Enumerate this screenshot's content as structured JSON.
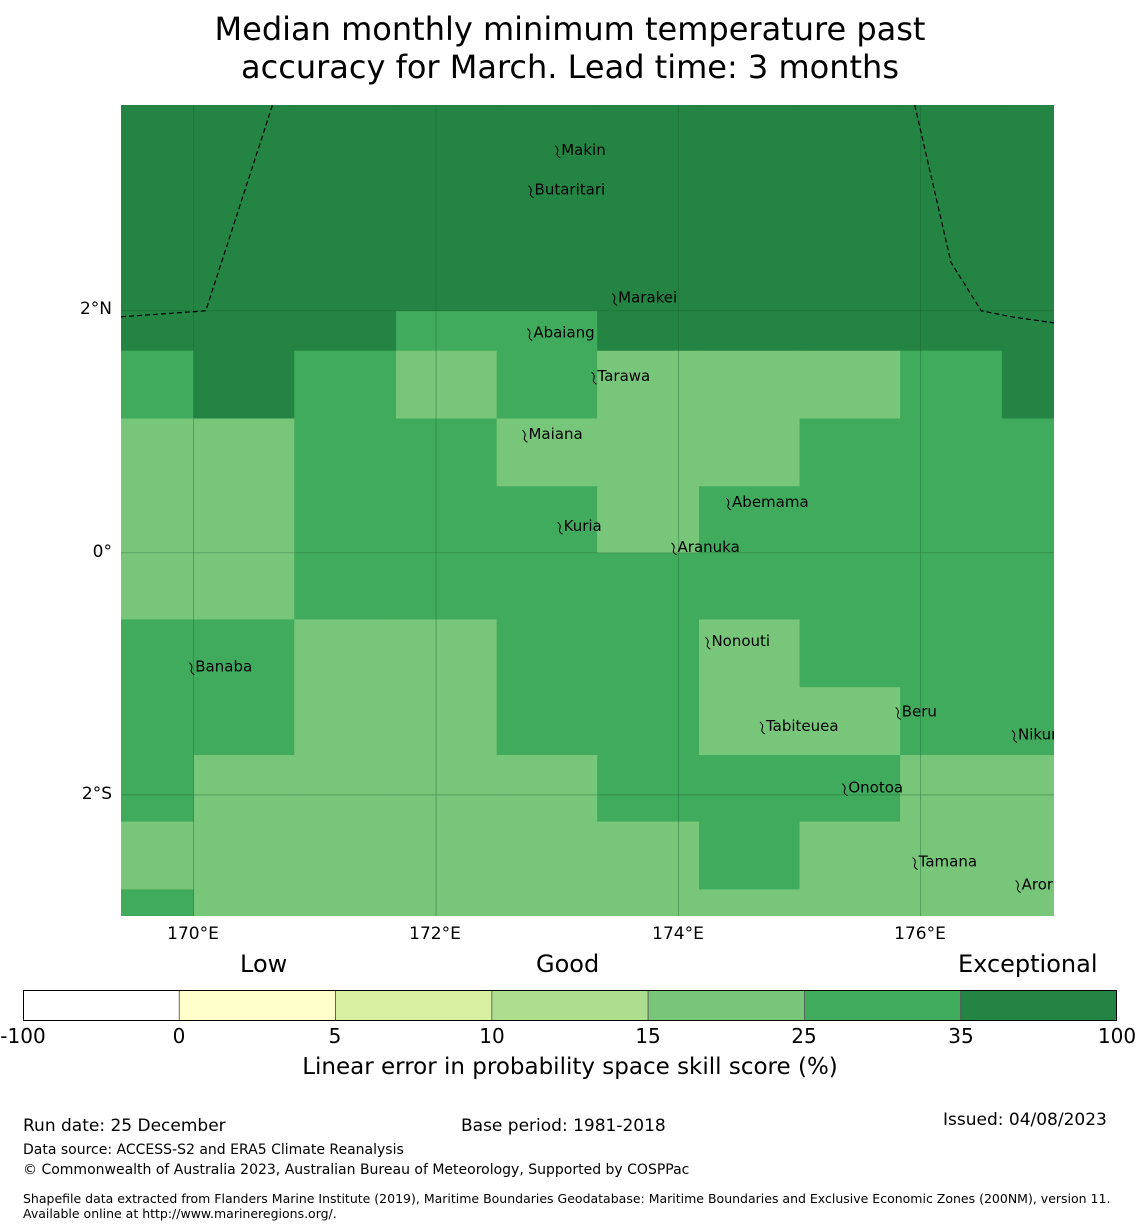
{
  "title_line1": "Median monthly minimum temperature past",
  "title_line2": "accuracy for March. Lead time: 3 months",
  "lat_ticks": [
    {
      "label": "2°N",
      "value": 2
    },
    {
      "label": "0°",
      "value": 0
    },
    {
      "label": "2°S",
      "value": -2
    }
  ],
  "lon_ticks": [
    {
      "label": "170°E",
      "value": 170
    },
    {
      "label": "172°E",
      "value": 172
    },
    {
      "label": "174°E",
      "value": 174
    },
    {
      "label": "176°E",
      "value": 176
    }
  ],
  "extent": {
    "lon_min": 169.4,
    "lon_max": 177.1,
    "lat_min": -3.0,
    "lat_max": 3.7
  },
  "grid": {
    "lon_edges": [
      169.4,
      170.0,
      170.83,
      171.67,
      172.5,
      173.33,
      174.17,
      175.0,
      175.83,
      176.67,
      177.1
    ],
    "lat_edges": [
      3.7,
      2.0,
      1.67,
      1.11,
      0.55,
      0.0,
      -0.55,
      -1.11,
      -1.67,
      -2.22,
      -2.78,
      -3.0
    ],
    "cell_classes": [
      [
        6,
        6,
        6,
        6,
        6,
        6,
        6,
        6,
        6,
        6
      ],
      [
        6,
        6,
        6,
        5,
        5,
        6,
        6,
        6,
        6,
        6
      ],
      [
        5,
        6,
        5,
        4,
        5,
        4,
        4,
        4,
        5,
        6
      ],
      [
        4,
        4,
        5,
        5,
        4,
        4,
        4,
        5,
        5,
        5
      ],
      [
        4,
        4,
        5,
        5,
        5,
        4,
        5,
        5,
        5,
        5
      ],
      [
        4,
        4,
        5,
        5,
        5,
        5,
        5,
        5,
        5,
        5
      ],
      [
        5,
        5,
        4,
        4,
        5,
        5,
        4,
        5,
        5,
        5
      ],
      [
        5,
        5,
        4,
        4,
        5,
        5,
        4,
        4,
        5,
        5
      ],
      [
        5,
        4,
        4,
        4,
        4,
        5,
        5,
        5,
        4,
        4
      ],
      [
        4,
        4,
        4,
        4,
        4,
        4,
        5,
        4,
        4,
        4
      ],
      [
        5,
        4,
        4,
        4,
        4,
        4,
        4,
        4,
        4,
        4
      ]
    ]
  },
  "eez_boundary_west": [
    [
      169.4,
      1.95
    ],
    [
      170.1,
      2.0
    ],
    [
      170.65,
      3.7
    ]
  ],
  "eez_boundary_east": [
    [
      175.95,
      3.7
    ],
    [
      176.25,
      2.4
    ],
    [
      176.5,
      2.0
    ],
    [
      176.75,
      1.95
    ],
    [
      177.1,
      1.9
    ]
  ],
  "islands": [
    {
      "name": "Makin",
      "lon": 173.0,
      "lat": 3.33
    },
    {
      "name": "Butaritari",
      "lon": 172.78,
      "lat": 3.0
    },
    {
      "name": "Marakei",
      "lon": 173.47,
      "lat": 2.11
    },
    {
      "name": "Abaiang",
      "lon": 172.77,
      "lat": 1.82
    },
    {
      "name": "Tarawa",
      "lon": 173.3,
      "lat": 1.46
    },
    {
      "name": "Maiana",
      "lon": 172.73,
      "lat": 0.98
    },
    {
      "name": "Abemama",
      "lon": 174.41,
      "lat": 0.42
    },
    {
      "name": "Kuria",
      "lon": 173.02,
      "lat": 0.22
    },
    {
      "name": "Aranuka",
      "lon": 173.96,
      "lat": 0.05
    },
    {
      "name": "Nonouti",
      "lon": 174.24,
      "lat": -0.73
    },
    {
      "name": "Banaba",
      "lon": 169.98,
      "lat": -0.94
    },
    {
      "name": "Beru",
      "lon": 175.81,
      "lat": -1.31
    },
    {
      "name": "Tabiteuea",
      "lon": 174.69,
      "lat": -1.43
    },
    {
      "name": "Nikunau",
      "lon": 176.77,
      "lat": -1.5
    },
    {
      "name": "Onotoa",
      "lon": 175.37,
      "lat": -1.94
    },
    {
      "name": "Tamana",
      "lon": 175.95,
      "lat": -2.55
    },
    {
      "name": "Arorae",
      "lon": 176.8,
      "lat": -2.74
    }
  ],
  "category_labels": [
    "Low",
    "Good",
    "Exceptional"
  ],
  "colorbar": {
    "ticks": [
      "-100",
      "0",
      "5",
      "10",
      "15",
      "25",
      "35",
      "100"
    ],
    "colors": [
      "#ffffff",
      "#ffffcc",
      "#d9f0a3",
      "#addd8e",
      "#78c679",
      "#41ab5d",
      "#238443"
    ],
    "title": "Linear error in probability space skill score (%)"
  },
  "footer": {
    "run_date": "Run date: 25 December",
    "base_period": "Base period: 1981-2018",
    "issued": "Issued: 04/08/2023",
    "data_source": "Data source: ACCESS-S2 and ERA5 Climate Reanalysis",
    "copyright": "© Commonwealth of Australia 2023, Australian Bureau of Meteorology, Supported by COSPPac",
    "shapefile": "Shapefile data extracted from Flanders Marine Institute (2019), Maritime Boundaries Geodatabase: Maritime Boundaries and Exclusive Economic Zones (200NM), version 11. Available online at http://www.marineregions.org/."
  }
}
